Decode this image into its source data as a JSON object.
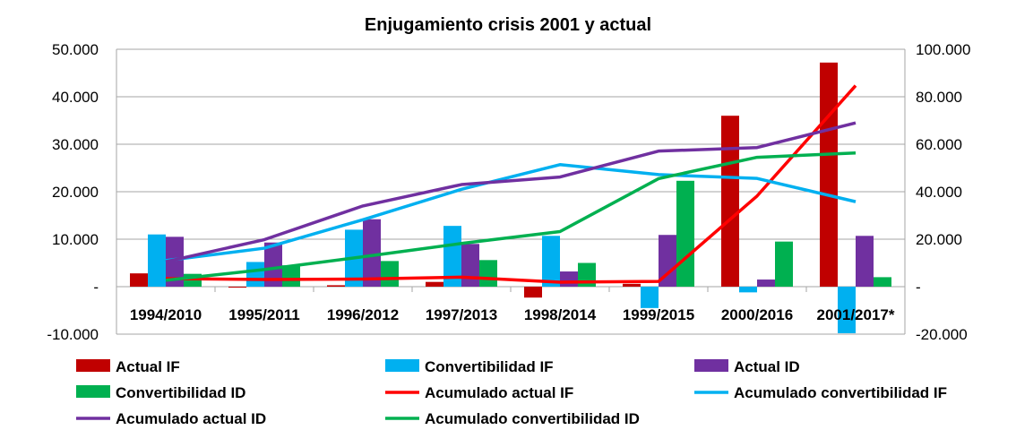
{
  "chart_data": {
    "type": "bar",
    "title": "Enjugamiento crisis 2001 y actual",
    "categories": [
      "1994/2010",
      "1995/2011",
      "1996/2012",
      "1997/2013",
      "1998/2014",
      "1999/2015",
      "2000/2016",
      "2001/2017*"
    ],
    "y_left": {
      "range": [
        -10000,
        50000
      ],
      "ticks": [
        -10000,
        0,
        10000,
        20000,
        30000,
        40000,
        50000
      ],
      "tick_labels": [
        "-10.000",
        "-",
        "10.000",
        "20.000",
        "30.000",
        "40.000",
        "50.000"
      ]
    },
    "y_right": {
      "range": [
        -20000,
        100000
      ],
      "ticks": [
        -20000,
        0,
        20000,
        40000,
        60000,
        80000,
        100000
      ],
      "tick_labels": [
        "-20.000",
        "-",
        "20.000",
        "40.000",
        "60.000",
        "80.000",
        "100.000"
      ]
    },
    "grid": true,
    "legend_position": "bottom",
    "series": [
      {
        "name": "Actual IF",
        "kind": "bar",
        "axis": "left",
        "color": "#C00000",
        "values": [
          2800,
          -200,
          300,
          1000,
          -2300,
          600,
          36000,
          47200
        ]
      },
      {
        "name": "Convertibilidad IF",
        "kind": "bar",
        "axis": "left",
        "color": "#00B0F0",
        "values": [
          11000,
          5200,
          12000,
          12800,
          10700,
          -4500,
          -1200,
          -9800
        ]
      },
      {
        "name": "Actual ID",
        "kind": "bar",
        "axis": "left",
        "color": "#7030A0",
        "values": [
          10500,
          9300,
          14200,
          9000,
          3200,
          10900,
          1500,
          10700
        ]
      },
      {
        "name": "Convertibilidad ID",
        "kind": "bar",
        "axis": "left",
        "color": "#00B050",
        "values": [
          2700,
          4500,
          5400,
          5600,
          5000,
          22300,
          9500,
          2000
        ]
      },
      {
        "name": "Acumulado actual IF",
        "kind": "line",
        "axis": "right",
        "color": "#FF0000",
        "values": [
          3400,
          3000,
          3200,
          4000,
          1900,
          2200,
          38200,
          84700
        ]
      },
      {
        "name": "Acumulado convertibilidad IF",
        "kind": "line",
        "axis": "right",
        "color": "#00B0F0",
        "values": [
          11000,
          16200,
          28200,
          41000,
          51400,
          47200,
          45600,
          35800
        ]
      },
      {
        "name": "Acumulado actual ID",
        "kind": "line",
        "axis": "right",
        "color": "#7030A0",
        "values": [
          10500,
          19800,
          34000,
          43000,
          46200,
          57100,
          58600,
          69000
        ]
      },
      {
        "name": "Acumulado convertibilidad ID",
        "kind": "line",
        "axis": "right",
        "color": "#00B050",
        "values": [
          2700,
          7200,
          12600,
          18200,
          23200,
          45500,
          54500,
          56300
        ]
      }
    ]
  }
}
